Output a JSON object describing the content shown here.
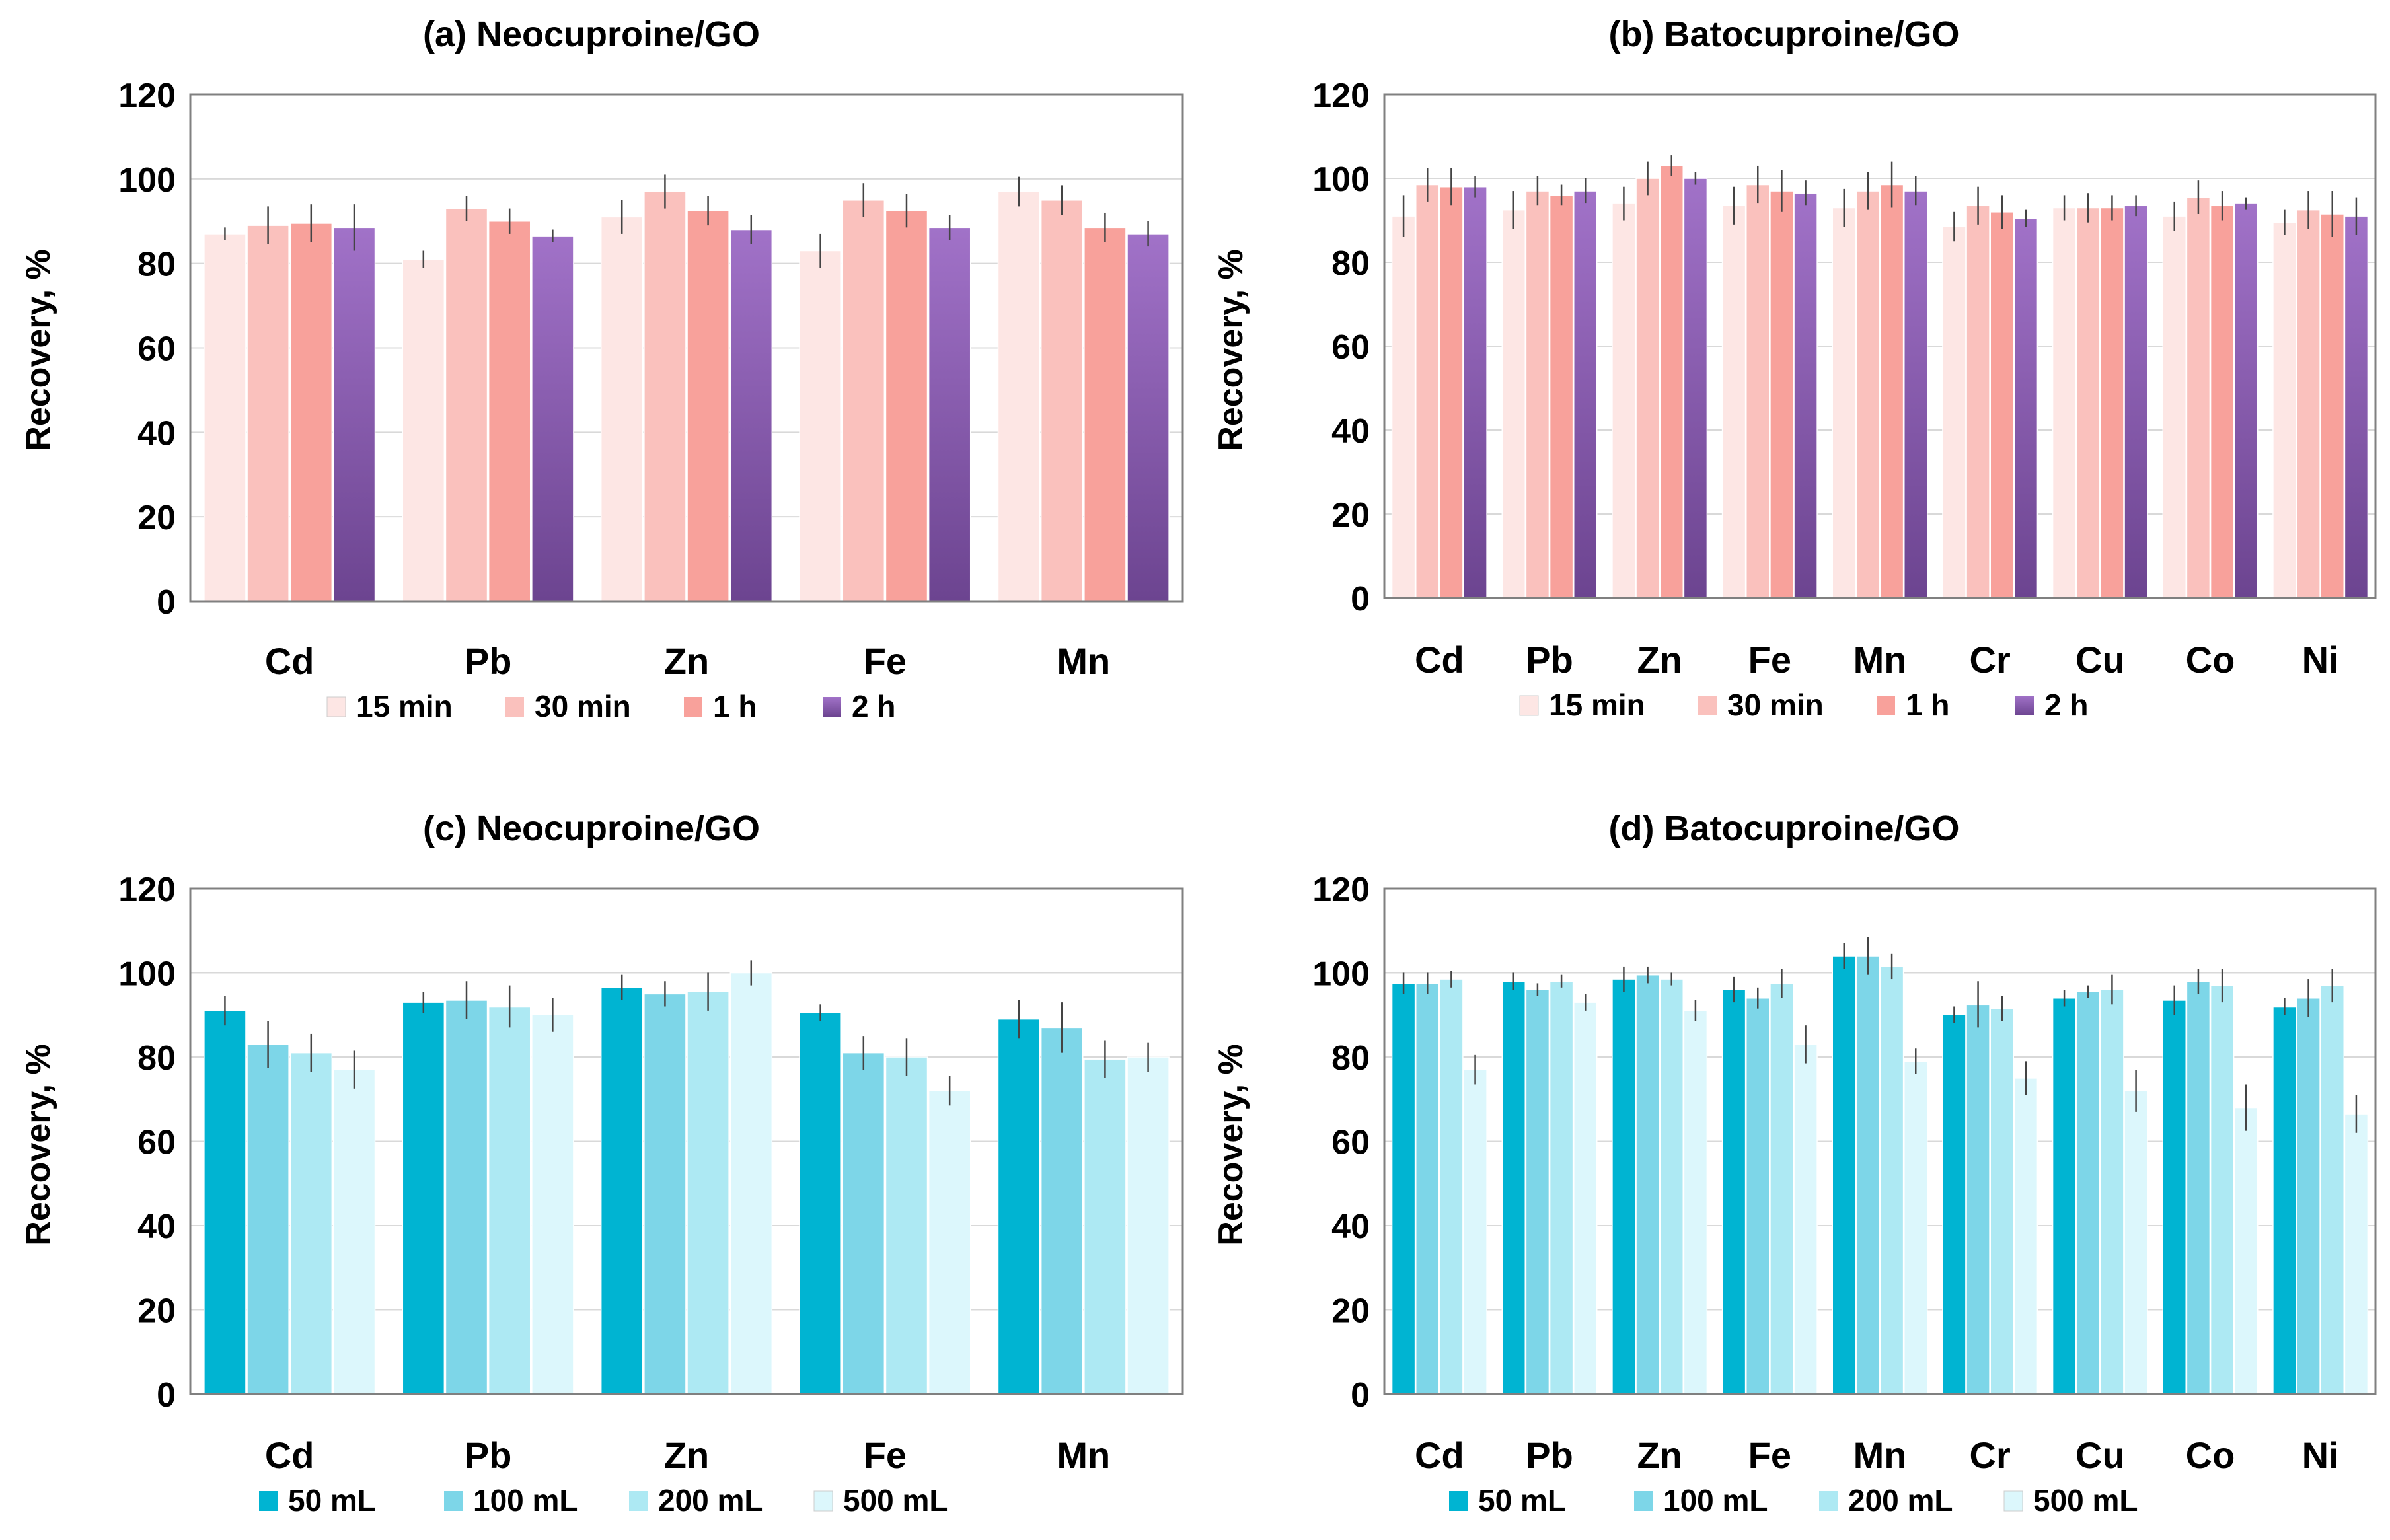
{
  "chart_data": [
    {
      "type": "bar",
      "title": "(a) Neocuproine/GO",
      "xlabel": "",
      "ylabel": "Recovery, %",
      "ylim": [
        0,
        120
      ],
      "yticks": [
        0,
        20,
        40,
        60,
        80,
        100,
        120
      ],
      "grid": true,
      "legend_position": "bottom",
      "categories": [
        "Cd",
        "Pb",
        "Zn",
        "Fe",
        "Mn"
      ],
      "series": [
        {
          "name": "15 min",
          "color": "#fde6e4",
          "values": [
            87,
            81,
            91,
            83,
            97
          ],
          "errors": [
            1.5,
            2,
            4,
            4,
            3.5
          ]
        },
        {
          "name": "30 min",
          "color": "#fac1bd",
          "values": [
            89,
            93,
            97,
            95,
            95
          ],
          "errors": [
            4.5,
            3,
            4,
            4,
            3.5
          ]
        },
        {
          "name": "1 h",
          "color": "#f8a19b",
          "values": [
            89.5,
            90,
            92.5,
            92.5,
            88.5
          ],
          "errors": [
            4.5,
            3,
            3.5,
            4,
            3.5
          ]
        },
        {
          "name": "2 h",
          "color": "#8b5fb0",
          "values": [
            88.5,
            86.5,
            88,
            88.5,
            87
          ],
          "errors": [
            5.5,
            1.5,
            3.5,
            3,
            3
          ]
        }
      ]
    },
    {
      "type": "bar",
      "title": "(b) Batocuproine/GO",
      "xlabel": "",
      "ylabel": "Recovery, %",
      "ylim": [
        0,
        120
      ],
      "yticks": [
        0,
        20,
        40,
        60,
        80,
        100,
        120
      ],
      "grid": true,
      "legend_position": "bottom",
      "categories": [
        "Cd",
        "Pb",
        "Zn",
        "Fe",
        "Mn",
        "Cr",
        "Cu",
        "Co",
        "Ni"
      ],
      "series": [
        {
          "name": "15 min",
          "color": "#fde6e4",
          "values": [
            91,
            92.5,
            94,
            93.5,
            93,
            88.5,
            93,
            91,
            89.5
          ],
          "errors": [
            5,
            4.5,
            4,
            4.5,
            4.5,
            3.5,
            3,
            3.5,
            3
          ]
        },
        {
          "name": "30 min",
          "color": "#fac1bd",
          "values": [
            98.5,
            97,
            100,
            98.5,
            97,
            93.5,
            93,
            95.5,
            92.5
          ],
          "errors": [
            4,
            3.5,
            4,
            4.5,
            4.5,
            4.5,
            3.5,
            4,
            4.5
          ]
        },
        {
          "name": "1 h",
          "color": "#f8a19b",
          "values": [
            98,
            96,
            103,
            97,
            98.5,
            92,
            93,
            93.5,
            91.5
          ],
          "errors": [
            4.5,
            2.5,
            2.5,
            5,
            5.5,
            4,
            3,
            3.5,
            5.5
          ]
        },
        {
          "name": "2 h",
          "color": "#8b5fb0",
          "values": [
            98,
            97,
            100,
            96.5,
            97,
            90.5,
            93.5,
            94,
            91
          ],
          "errors": [
            2.5,
            3,
            1.5,
            3,
            3.5,
            2,
            2.5,
            1.5,
            4.5
          ]
        }
      ]
    },
    {
      "type": "bar",
      "title": "(c) Neocuproine/GO",
      "xlabel": "",
      "ylabel": "Recovery, %",
      "ylim": [
        0,
        120
      ],
      "yticks": [
        0,
        20,
        40,
        60,
        80,
        100,
        120
      ],
      "grid": true,
      "legend_position": "bottom",
      "categories": [
        "Cd",
        "Pb",
        "Zn",
        "Fe",
        "Mn"
      ],
      "series": [
        {
          "name": "50 mL",
          "color": "#00b4d2",
          "values": [
            91,
            93,
            96.5,
            90.5,
            89
          ],
          "errors": [
            3.5,
            2.5,
            3,
            2,
            4.5
          ]
        },
        {
          "name": "100 mL",
          "color": "#7dd6e8",
          "values": [
            83,
            93.5,
            95,
            81,
            87
          ],
          "errors": [
            5.5,
            4.5,
            3,
            4,
            6
          ]
        },
        {
          "name": "200 mL",
          "color": "#ade9f3",
          "values": [
            81,
            92,
            95.5,
            80,
            79.5
          ],
          "errors": [
            4.5,
            5,
            4.5,
            4.5,
            4.5
          ]
        },
        {
          "name": "500 mL",
          "color": "#dcf7fc",
          "values": [
            77,
            90,
            100,
            72,
            80
          ],
          "errors": [
            4.5,
            4,
            3,
            3.5,
            3.5
          ]
        }
      ]
    },
    {
      "type": "bar",
      "title": "(d) Batocuproine/GO",
      "xlabel": "",
      "ylabel": "Recovery, %",
      "ylim": [
        0,
        120
      ],
      "yticks": [
        0,
        20,
        40,
        60,
        80,
        100,
        120
      ],
      "grid": true,
      "legend_position": "bottom",
      "categories": [
        "Cd",
        "Pb",
        "Zn",
        "Fe",
        "Mn",
        "Cr",
        "Cu",
        "Co",
        "Ni"
      ],
      "series": [
        {
          "name": "50 mL",
          "color": "#00b4d2",
          "values": [
            97.5,
            98,
            98.5,
            96,
            104,
            90,
            94,
            93.5,
            92
          ],
          "errors": [
            2.5,
            2,
            3,
            3,
            3,
            2,
            2,
            3.5,
            2
          ]
        },
        {
          "name": "100 mL",
          "color": "#7dd6e8",
          "values": [
            97.5,
            96,
            99.5,
            94,
            104,
            92.5,
            95.5,
            98,
            94
          ],
          "errors": [
            2.5,
            1.5,
            2,
            2.5,
            4.5,
            5.5,
            1.5,
            3,
            4.5
          ]
        },
        {
          "name": "200 mL",
          "color": "#ade9f3",
          "values": [
            98.5,
            98,
            98.5,
            97.5,
            101.5,
            91.5,
            96,
            97,
            97
          ],
          "errors": [
            2,
            1.5,
            1.5,
            3.5,
            3,
            3,
            3.5,
            4,
            4
          ]
        },
        {
          "name": "500 mL",
          "color": "#dcf7fc",
          "values": [
            77,
            93,
            91,
            83,
            79,
            75,
            72,
            68,
            66.5
          ],
          "errors": [
            3.5,
            2,
            2.5,
            4.5,
            3,
            4,
            5,
            5.5,
            4.5
          ]
        }
      ]
    }
  ]
}
